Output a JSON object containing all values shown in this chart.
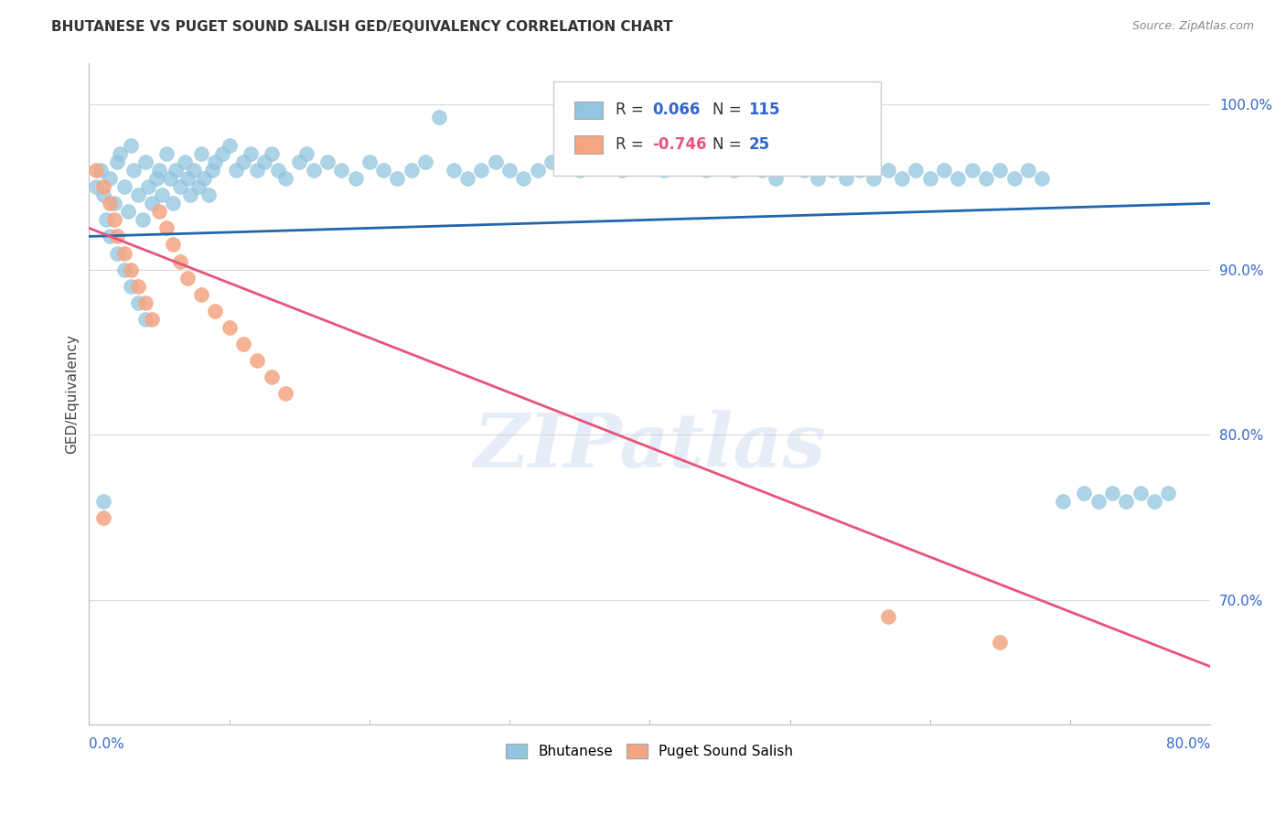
{
  "title": "BHUTANESE VS PUGET SOUND SALISH GED/EQUIVALENCY CORRELATION CHART",
  "source": "Source: ZipAtlas.com",
  "ylabel": "GED/Equivalency",
  "ytick_values": [
    0.7,
    0.8,
    0.9,
    1.0
  ],
  "ytick_labels": [
    "70.0%",
    "80.0%",
    "90.0%",
    "100.0%"
  ],
  "xlim": [
    0.0,
    0.8
  ],
  "ylim": [
    0.625,
    1.025
  ],
  "blue_color": "#92c5de",
  "blue_edge_color": "#92c5de",
  "blue_line_color": "#2166ac",
  "pink_color": "#f4a582",
  "pink_edge_color": "#f4a582",
  "pink_line_color": "#e8537a",
  "blue_scatter_x": [
    0.005,
    0.008,
    0.01,
    0.012,
    0.015,
    0.018,
    0.02,
    0.022,
    0.025,
    0.028,
    0.03,
    0.032,
    0.035,
    0.038,
    0.04,
    0.042,
    0.045,
    0.048,
    0.05,
    0.052,
    0.055,
    0.058,
    0.06,
    0.062,
    0.065,
    0.068,
    0.07,
    0.072,
    0.075,
    0.078,
    0.08,
    0.082,
    0.085,
    0.088,
    0.09,
    0.095,
    0.1,
    0.105,
    0.11,
    0.115,
    0.12,
    0.125,
    0.13,
    0.135,
    0.14,
    0.15,
    0.155,
    0.16,
    0.17,
    0.18,
    0.19,
    0.2,
    0.21,
    0.22,
    0.23,
    0.24,
    0.25,
    0.26,
    0.27,
    0.28,
    0.29,
    0.3,
    0.31,
    0.32,
    0.33,
    0.34,
    0.35,
    0.36,
    0.37,
    0.38,
    0.39,
    0.4,
    0.41,
    0.42,
    0.43,
    0.44,
    0.45,
    0.46,
    0.47,
    0.48,
    0.49,
    0.5,
    0.51,
    0.52,
    0.53,
    0.54,
    0.55,
    0.56,
    0.57,
    0.58,
    0.59,
    0.6,
    0.61,
    0.62,
    0.63,
    0.64,
    0.65,
    0.66,
    0.67,
    0.68,
    0.695,
    0.71,
    0.72,
    0.73,
    0.74,
    0.75,
    0.76,
    0.77,
    0.01,
    0.015,
    0.02,
    0.025,
    0.03,
    0.035,
    0.04
  ],
  "blue_scatter_y": [
    0.95,
    0.96,
    0.945,
    0.93,
    0.955,
    0.94,
    0.965,
    0.97,
    0.95,
    0.935,
    0.975,
    0.96,
    0.945,
    0.93,
    0.965,
    0.95,
    0.94,
    0.955,
    0.96,
    0.945,
    0.97,
    0.955,
    0.94,
    0.96,
    0.95,
    0.965,
    0.955,
    0.945,
    0.96,
    0.95,
    0.97,
    0.955,
    0.945,
    0.96,
    0.965,
    0.97,
    0.975,
    0.96,
    0.965,
    0.97,
    0.96,
    0.965,
    0.97,
    0.96,
    0.955,
    0.965,
    0.97,
    0.96,
    0.965,
    0.96,
    0.955,
    0.965,
    0.96,
    0.955,
    0.96,
    0.965,
    0.992,
    0.96,
    0.955,
    0.96,
    0.965,
    0.96,
    0.955,
    0.96,
    0.965,
    0.97,
    0.96,
    0.965,
    0.97,
    0.96,
    0.965,
    0.97,
    0.96,
    0.965,
    0.97,
    0.96,
    0.965,
    0.96,
    0.965,
    0.96,
    0.955,
    0.965,
    0.96,
    0.955,
    0.96,
    0.955,
    0.96,
    0.955,
    0.96,
    0.955,
    0.96,
    0.955,
    0.96,
    0.955,
    0.96,
    0.955,
    0.96,
    0.955,
    0.96,
    0.955,
    0.76,
    0.765,
    0.76,
    0.765,
    0.76,
    0.765,
    0.76,
    0.765,
    0.76,
    0.92,
    0.91,
    0.9,
    0.89,
    0.88,
    0.87
  ],
  "pink_scatter_x": [
    0.005,
    0.01,
    0.015,
    0.018,
    0.02,
    0.025,
    0.03,
    0.035,
    0.04,
    0.045,
    0.05,
    0.055,
    0.06,
    0.065,
    0.07,
    0.08,
    0.09,
    0.1,
    0.11,
    0.12,
    0.13,
    0.14,
    0.01,
    0.57,
    0.65
  ],
  "pink_scatter_y": [
    0.96,
    0.95,
    0.94,
    0.93,
    0.92,
    0.91,
    0.9,
    0.89,
    0.88,
    0.87,
    0.935,
    0.925,
    0.915,
    0.905,
    0.895,
    0.885,
    0.875,
    0.865,
    0.855,
    0.845,
    0.835,
    0.825,
    0.75,
    0.69,
    0.675
  ],
  "blue_trend_x": [
    0.0,
    0.8
  ],
  "blue_trend_y": [
    0.92,
    0.94
  ],
  "pink_trend_x": [
    0.0,
    0.8
  ],
  "pink_trend_y": [
    0.925,
    0.66
  ],
  "watermark": "ZIPatlas",
  "background_color": "#ffffff",
  "grid_color": "#d8d8d8",
  "legend_blue_r": "0.066",
  "legend_blue_n": "115",
  "legend_pink_r": "-0.746",
  "legend_pink_n": "25"
}
